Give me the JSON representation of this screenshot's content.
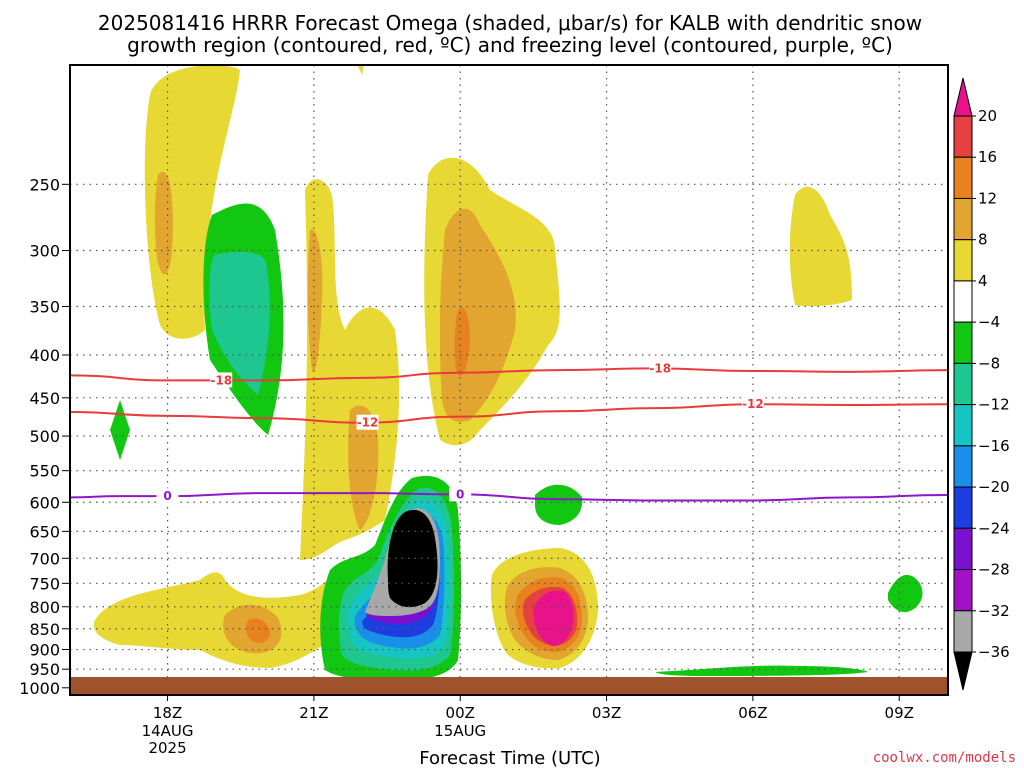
{
  "title_line1": "2025081416 HRRR Forecast Omega (shaded, μbar/s) for KALB with dendritic snow",
  "title_line2": "growth region (contoured, red, ºC) and freezing level (contoured, purple, ºC)",
  "credit": "coolwx.com/models",
  "chart_data": {
    "type": "heatmap",
    "xlabel": "Forecast Time (UTC)",
    "ylabel": "",
    "x_ticks": [
      {
        "label": "18Z",
        "hour": 18,
        "sub": [
          "14AUG",
          "2025"
        ]
      },
      {
        "label": "21Z",
        "hour": 21,
        "sub": []
      },
      {
        "label": "00Z",
        "hour": 24,
        "sub": [
          "15AUG"
        ]
      },
      {
        "label": "03Z",
        "hour": 27,
        "sub": []
      },
      {
        "label": "06Z",
        "hour": 30,
        "sub": []
      },
      {
        "label": "09Z",
        "hour": 33,
        "sub": []
      }
    ],
    "x_range_hours": [
      16,
      34
    ],
    "y_ticks": [
      250,
      300,
      350,
      400,
      450,
      500,
      550,
      600,
      650,
      700,
      750,
      800,
      850,
      900,
      950,
      1000
    ],
    "y_range_mb": [
      1020,
      180
    ],
    "grid": true,
    "colorbar": {
      "ticks": [
        "20",
        "16",
        "12",
        "8",
        "4",
        "−4",
        "−8",
        "−12",
        "−16",
        "−20",
        "−24",
        "−28",
        "−32",
        "−36"
      ],
      "colors": [
        "#e8128a",
        "#e64040",
        "#e8821e",
        "#e2a530",
        "#e7d833",
        "#ffffff",
        "#11c711",
        "#1ec690",
        "#16c4c4",
        "#1a8fea",
        "#1c3ee0",
        "#7a10d0",
        "#a410c4",
        "#a8a8a8",
        "#000000"
      ]
    },
    "contours": [
      {
        "name": "-18",
        "color": "#e83c3c",
        "points": [
          [
            16,
            423
          ],
          [
            18,
            429
          ],
          [
            20,
            429
          ],
          [
            22,
            426
          ],
          [
            24,
            420
          ],
          [
            26,
            417
          ],
          [
            28,
            415
          ],
          [
            30,
            418
          ],
          [
            32,
            419
          ],
          [
            34,
            417
          ]
        ]
      },
      {
        "name": "-12",
        "color": "#e83c3c",
        "points": [
          [
            16,
            468
          ],
          [
            18,
            473
          ],
          [
            20,
            476
          ],
          [
            22,
            482
          ],
          [
            24,
            474
          ],
          [
            26,
            467
          ],
          [
            28,
            463
          ],
          [
            30,
            458
          ],
          [
            32,
            459
          ],
          [
            34,
            458
          ]
        ]
      },
      {
        "name": "0",
        "color": "#8e18c8",
        "points": [
          [
            16,
            592
          ],
          [
            17,
            590
          ],
          [
            18,
            590
          ],
          [
            20,
            585
          ],
          [
            22,
            585
          ],
          [
            24,
            587
          ],
          [
            26,
            595
          ],
          [
            28,
            597
          ],
          [
            30,
            597
          ],
          [
            32,
            592
          ],
          [
            34,
            588
          ]
        ]
      }
    ],
    "contour_labels": [
      {
        "text": "-18",
        "hour": 19.1,
        "mb": 429,
        "color": "#e83c3c"
      },
      {
        "text": "-18",
        "hour": 28.1,
        "mb": 415,
        "color": "#e83c3c"
      },
      {
        "text": "-12",
        "hour": 22.1,
        "mb": 482,
        "color": "#e83c3c"
      },
      {
        "text": "-12",
        "hour": 30,
        "mb": 458,
        "color": "#e83c3c"
      },
      {
        "text": "0",
        "hour": 18,
        "mb": 590,
        "color": "#8e18c8"
      },
      {
        "text": "0",
        "hour": 24,
        "mb": 587,
        "color": "#8e18c8"
      }
    ]
  }
}
